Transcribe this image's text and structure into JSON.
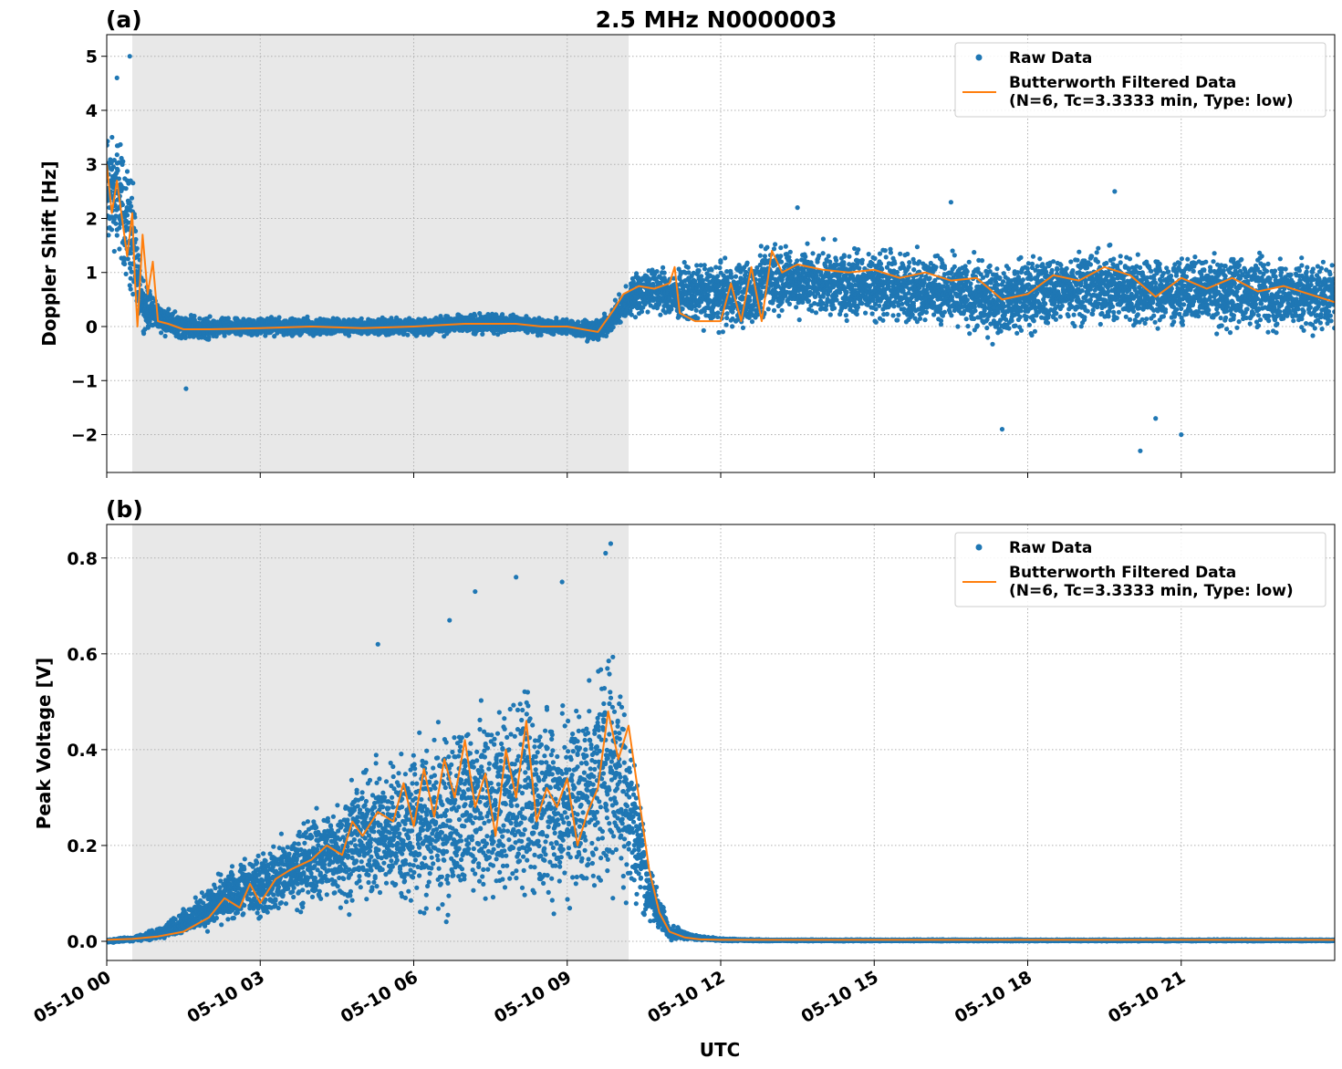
{
  "figure": {
    "title": "2.5 MHz N0000003",
    "xlabel": "UTC",
    "raw_color": "#1f77b4",
    "filtered_color": "#ff7f0e",
    "shade_color": "#e8e8e8"
  },
  "chart_data": [
    {
      "type": "scatter",
      "panel_label": "(a)",
      "ylabel": "Doppler Shift [Hz]",
      "xlim": [
        0,
        24
      ],
      "ylim": [
        -2.7,
        5.4
      ],
      "x_unit": "hours UTC on 05-10",
      "x_ticks": [
        0,
        3,
        6,
        9,
        12,
        15,
        18,
        21
      ],
      "x_tick_labels": [
        "05-10 00",
        "05-10 03",
        "05-10 06",
        "05-10 09",
        "05-10 12",
        "05-10 15",
        "05-10 18",
        "05-10 21"
      ],
      "y_ticks": [
        -2,
        -1,
        0,
        1,
        2,
        3,
        4,
        5
      ],
      "y_tick_labels": [
        "−2",
        "−1",
        "0",
        "1",
        "2",
        "3",
        "4",
        "5"
      ],
      "grid": true,
      "legend_position": "top-right",
      "shaded_interval": [
        0.5,
        10.2
      ],
      "series": [
        {
          "name": "Raw Data",
          "kind": "scatter",
          "color": "#1f77b4",
          "x": [
            0,
            0.25,
            0.5,
            0.6,
            0.75,
            1.0,
            1.25,
            1.5,
            2,
            3,
            4,
            5,
            6,
            7,
            8,
            8.5,
            9,
            9.3,
            9.6,
            10,
            10.3,
            10.7,
            11,
            11.5,
            12,
            12.5,
            13,
            13.5,
            14,
            15,
            16,
            17,
            17.5,
            18,
            19,
            20,
            21,
            22,
            23,
            24
          ],
          "center": [
            2.5,
            2.4,
            1.6,
            0.8,
            0.4,
            0.2,
            0.05,
            0,
            -0.03,
            0,
            0,
            0,
            0,
            0.05,
            0.05,
            0,
            0,
            -0.05,
            -0.1,
            0.25,
            0.6,
            0.7,
            0.6,
            0.6,
            0.6,
            0.6,
            0.9,
            0.85,
            0.8,
            0.75,
            0.7,
            0.55,
            0.45,
            0.6,
            0.75,
            0.7,
            0.65,
            0.65,
            0.6,
            0.55
          ],
          "spread": [
            1.4,
            1.4,
            1.6,
            1.0,
            0.6,
            0.35,
            0.3,
            0.3,
            0.25,
            0.2,
            0.2,
            0.2,
            0.2,
            0.25,
            0.2,
            0.2,
            0.2,
            0.25,
            0.25,
            0.35,
            0.5,
            0.55,
            0.6,
            0.7,
            0.75,
            0.8,
            0.85,
            0.85,
            0.85,
            0.85,
            0.85,
            0.9,
            0.9,
            0.9,
            0.9,
            0.9,
            0.85,
            0.85,
            0.85,
            0.8
          ],
          "outliers": [
            [
              0.45,
              5.0
            ],
            [
              0.2,
              4.6
            ],
            [
              1.55,
              -1.15
            ],
            [
              17.5,
              -1.9
            ],
            [
              20.5,
              -1.7
            ],
            [
              21.0,
              -2.0
            ],
            [
              20.2,
              -2.3
            ],
            [
              19.7,
              2.5
            ],
            [
              16.5,
              2.3
            ],
            [
              13.5,
              2.2
            ]
          ]
        },
        {
          "name": "Butterworth Filtered Data\n(N=6, Tc=3.3333 min, Type: low)",
          "kind": "line",
          "color": "#ff7f0e",
          "x": [
            0,
            0.1,
            0.2,
            0.3,
            0.4,
            0.5,
            0.55,
            0.6,
            0.7,
            0.8,
            0.9,
            1.0,
            1.2,
            1.5,
            2,
            3,
            4,
            5,
            6,
            7,
            8,
            8.5,
            9,
            9.3,
            9.6,
            9.9,
            10.1,
            10.4,
            10.7,
            11,
            11.1,
            11.2,
            11.5,
            12,
            12.2,
            12.4,
            12.6,
            12.8,
            13.0,
            13.2,
            13.5,
            14,
            14.5,
            15,
            15.5,
            16,
            16.5,
            17,
            17.5,
            18,
            18.5,
            19,
            19.5,
            20,
            20.5,
            21,
            21.5,
            22,
            22.5,
            23,
            23.5,
            24
          ],
          "y": [
            3.0,
            2.1,
            2.7,
            2.0,
            1.3,
            2.1,
            0.9,
            0.0,
            1.7,
            0.6,
            1.2,
            0.1,
            0.05,
            -0.05,
            -0.05,
            -0.03,
            0.0,
            -0.03,
            0.0,
            0.05,
            0.05,
            0.0,
            0.0,
            -0.05,
            -0.1,
            0.3,
            0.6,
            0.75,
            0.7,
            0.8,
            1.1,
            0.25,
            0.1,
            0.1,
            0.8,
            0.1,
            1.1,
            0.1,
            1.4,
            1.0,
            1.15,
            1.05,
            1.0,
            1.05,
            0.9,
            1.0,
            0.85,
            0.9,
            0.5,
            0.6,
            0.95,
            0.85,
            1.1,
            0.95,
            0.55,
            0.9,
            0.7,
            0.9,
            0.65,
            0.75,
            0.6,
            0.45
          ]
        }
      ]
    },
    {
      "type": "scatter",
      "panel_label": "(b)",
      "ylabel": "Peak Voltage [V]",
      "xlim": [
        0,
        24
      ],
      "ylim": [
        -0.04,
        0.87
      ],
      "x_unit": "hours UTC on 05-10",
      "x_ticks": [
        0,
        3,
        6,
        9,
        12,
        15,
        18,
        21
      ],
      "x_tick_labels": [
        "05-10 00",
        "05-10 03",
        "05-10 06",
        "05-10 09",
        "05-10 12",
        "05-10 15",
        "05-10 18",
        "05-10 21"
      ],
      "y_ticks": [
        0.0,
        0.2,
        0.4,
        0.6,
        0.8
      ],
      "y_tick_labels": [
        "0.0",
        "0.2",
        "0.4",
        "0.6",
        "0.8"
      ],
      "grid": true,
      "legend_position": "top-right",
      "shaded_interval": [
        0.5,
        10.2
      ],
      "series": [
        {
          "name": "Raw Data",
          "kind": "scatter",
          "color": "#1f77b4",
          "x": [
            0,
            0.5,
            1.0,
            1.5,
            2.0,
            2.5,
            3.0,
            3.5,
            4.0,
            4.5,
            5.0,
            5.5,
            6.0,
            6.5,
            7.0,
            7.5,
            8.0,
            8.5,
            9.0,
            9.5,
            9.8,
            10.0,
            10.3,
            10.6,
            11.0,
            11.5,
            12,
            13,
            15,
            18,
            21,
            24
          ],
          "center": [
            0.0,
            0.005,
            0.015,
            0.04,
            0.07,
            0.1,
            0.12,
            0.14,
            0.17,
            0.19,
            0.22,
            0.23,
            0.24,
            0.25,
            0.27,
            0.28,
            0.3,
            0.29,
            0.28,
            0.32,
            0.38,
            0.35,
            0.25,
            0.1,
            0.02,
            0.008,
            0.003,
            0.002,
            0.002,
            0.002,
            0.002,
            0.002
          ],
          "spread": [
            0.004,
            0.006,
            0.015,
            0.03,
            0.06,
            0.08,
            0.09,
            0.1,
            0.12,
            0.15,
            0.17,
            0.2,
            0.22,
            0.24,
            0.26,
            0.27,
            0.28,
            0.28,
            0.27,
            0.3,
            0.32,
            0.3,
            0.22,
            0.08,
            0.02,
            0.006,
            0.003,
            0.002,
            0.002,
            0.002,
            0.002,
            0.002
          ],
          "outliers": [
            [
              9.85,
              0.83
            ],
            [
              9.75,
              0.81
            ],
            [
              8.0,
              0.76
            ],
            [
              8.9,
              0.75
            ],
            [
              7.2,
              0.73
            ],
            [
              6.7,
              0.67
            ],
            [
              5.3,
              0.62
            ]
          ]
        },
        {
          "name": "Butterworth Filtered Data\n(N=6, Tc=3.3333 min, Type: low)",
          "kind": "line",
          "color": "#ff7f0e",
          "x": [
            0,
            0.5,
            1.0,
            1.5,
            2.0,
            2.3,
            2.6,
            2.8,
            3.0,
            3.3,
            3.6,
            4.0,
            4.3,
            4.6,
            4.8,
            5.0,
            5.3,
            5.6,
            5.8,
            6.0,
            6.2,
            6.4,
            6.6,
            6.8,
            7.0,
            7.2,
            7.4,
            7.6,
            7.8,
            8.0,
            8.2,
            8.4,
            8.6,
            8.8,
            9.0,
            9.2,
            9.4,
            9.6,
            9.8,
            10.0,
            10.2,
            10.4,
            10.6,
            10.8,
            11.0,
            11.3,
            11.6,
            12,
            14,
            16,
            18,
            20,
            22,
            24
          ],
          "y": [
            0.003,
            0.005,
            0.01,
            0.02,
            0.05,
            0.09,
            0.07,
            0.12,
            0.08,
            0.13,
            0.15,
            0.17,
            0.2,
            0.18,
            0.25,
            0.22,
            0.27,
            0.25,
            0.33,
            0.24,
            0.36,
            0.26,
            0.38,
            0.3,
            0.42,
            0.28,
            0.35,
            0.22,
            0.4,
            0.3,
            0.46,
            0.25,
            0.32,
            0.28,
            0.34,
            0.2,
            0.27,
            0.32,
            0.48,
            0.38,
            0.45,
            0.3,
            0.15,
            0.06,
            0.02,
            0.008,
            0.004,
            0.003,
            0.003,
            0.003,
            0.003,
            0.003,
            0.003,
            0.003
          ]
        }
      ]
    }
  ]
}
